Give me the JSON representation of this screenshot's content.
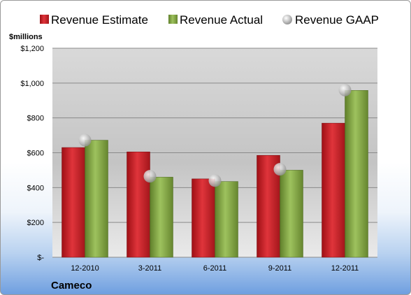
{
  "chart_data": {
    "type": "bar",
    "title": "",
    "company": "Cameco",
    "y_unit_label": "$millions",
    "categories": [
      "12-2010",
      "3-2011",
      "6-2011",
      "9-2011",
      "12-2011"
    ],
    "ylim": [
      0,
      1200
    ],
    "yticks": [
      0,
      200,
      400,
      600,
      800,
      1000,
      1200
    ],
    "ytick_labels": [
      "$-",
      "$200",
      "$400",
      "$600",
      "$800",
      "$1,000",
      "$1,200"
    ],
    "grid": true,
    "legend_position": "top",
    "series": [
      {
        "name": "Revenue Estimate",
        "kind": "bar",
        "color": "#d7232b",
        "values": [
          630,
          605,
          450,
          585,
          770
        ]
      },
      {
        "name": "Revenue Actual",
        "kind": "bar",
        "color": "#8cb04f",
        "values": [
          672,
          460,
          435,
          500,
          958
        ]
      },
      {
        "name": "Revenue GAAP",
        "kind": "marker",
        "color": "#b8b8b8",
        "values": [
          672,
          465,
          440,
          505,
          960
        ]
      }
    ]
  }
}
